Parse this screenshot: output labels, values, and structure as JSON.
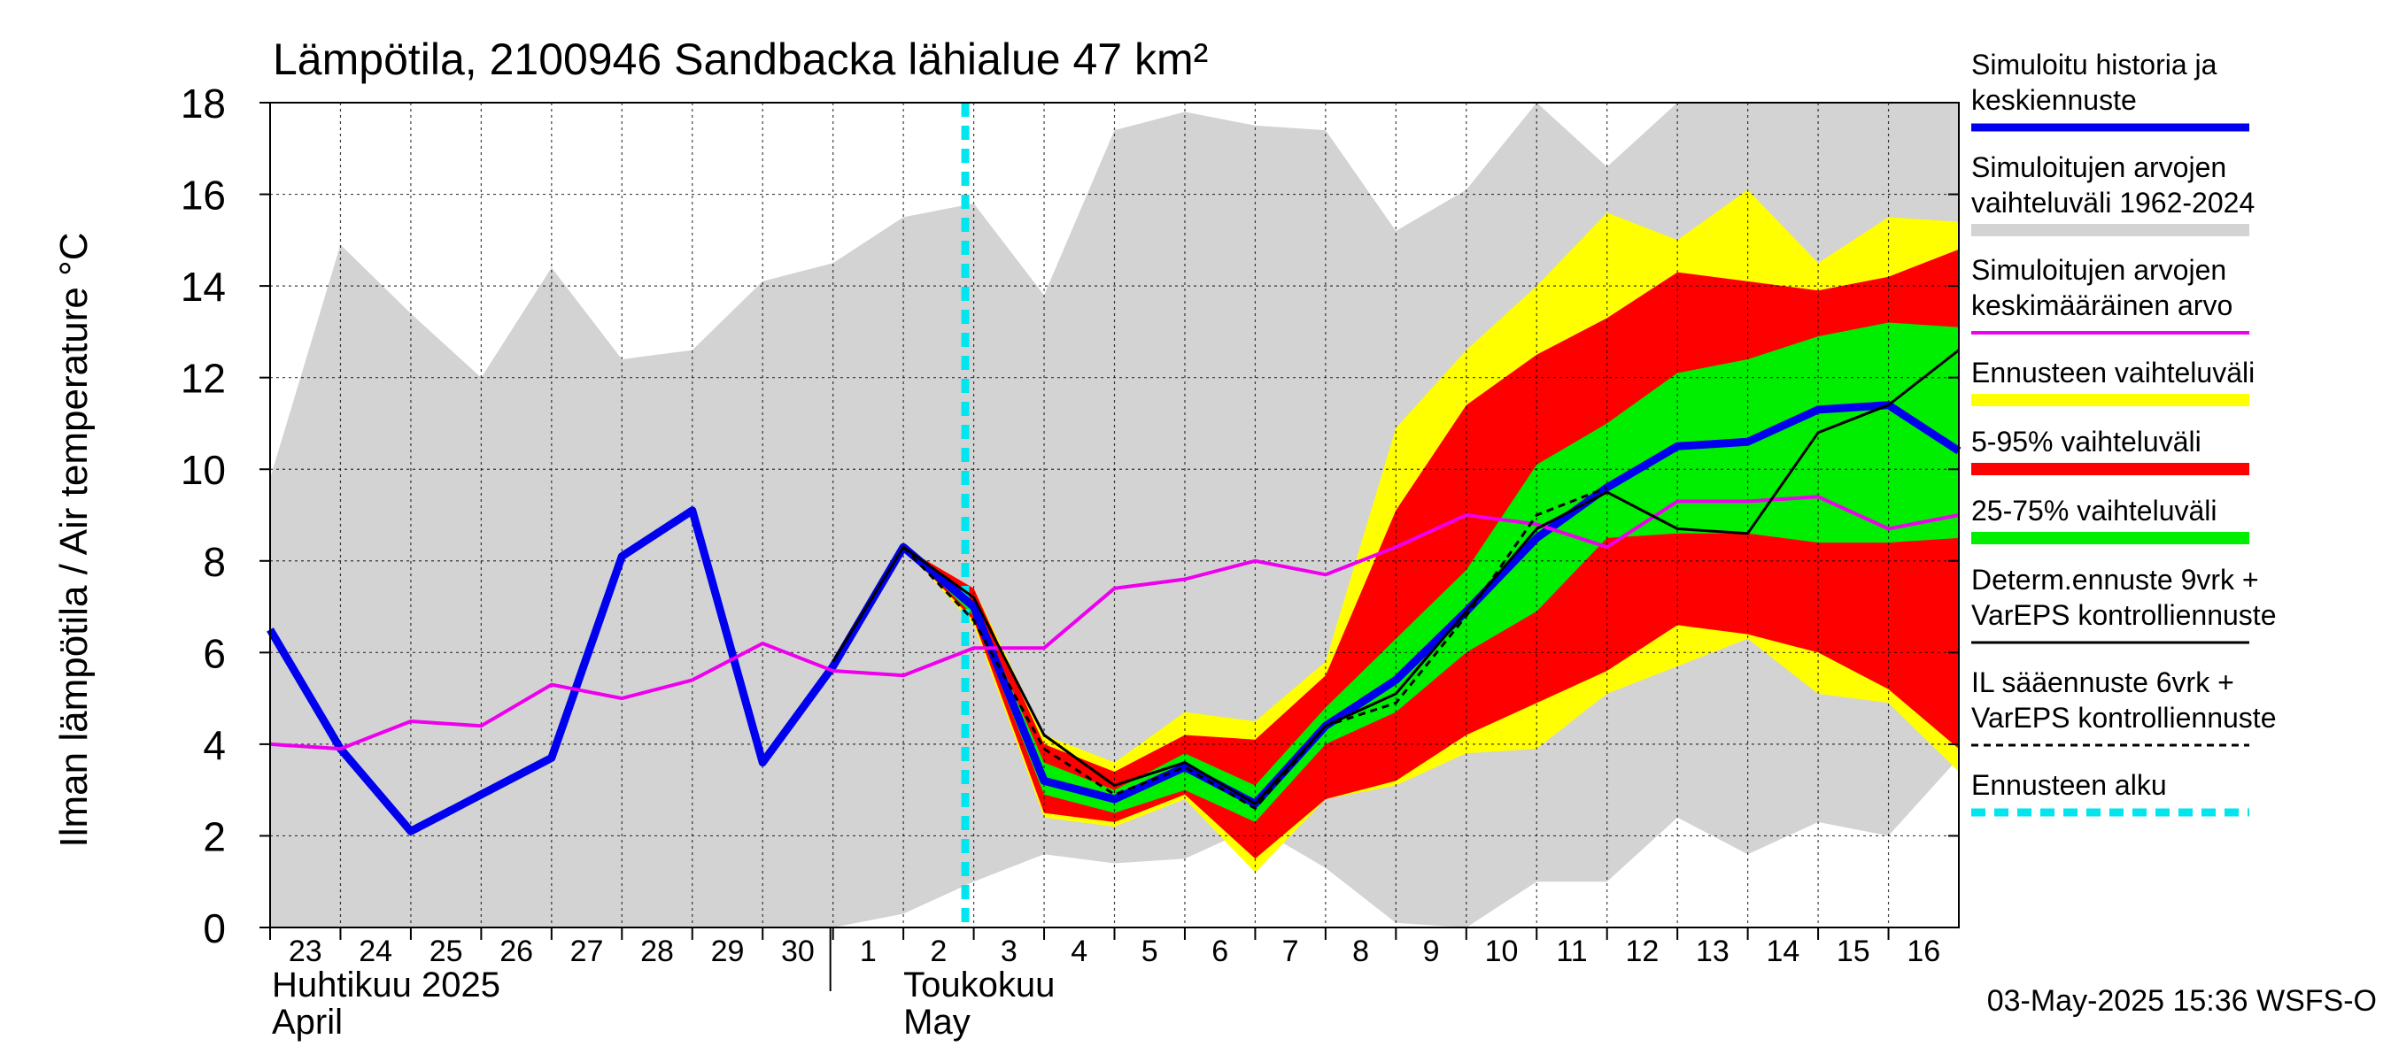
{
  "chart_data": {
    "type": "area",
    "title": "Lämpötila, 2100946 Sandbacka lähialue 47 km²",
    "ylabel": "Ilman lämpötila / Air temperature    °C",
    "ylim": [
      0,
      18
    ],
    "yticks": [
      0,
      2,
      4,
      6,
      8,
      10,
      12,
      14,
      16,
      18
    ],
    "grid": true,
    "x_start": "2025-04-23",
    "x_end": "2025-05-17",
    "month_labels": [
      {
        "date": "2025-04-23",
        "line1": "Huhtikuu  2025",
        "line2": "April"
      },
      {
        "date": "2025-05-02",
        "line1": "Toukokuu",
        "line2": "May"
      }
    ],
    "forecast_start": "2025-05-03",
    "timestamp": "03-May-2025 15:36 WSFS-O",
    "colors": {
      "history_range": "#d3d3d3",
      "forecast_range": "#ffff00",
      "p5_95": "#ff0000",
      "p25_75": "#00ee00",
      "simulated": "#0000ee",
      "mean": "#ee00ee",
      "determ": "#000000",
      "il": "#000000",
      "forecast_start": "#00e5ee"
    },
    "history_range": {
      "x": [
        "2025-04-23",
        "2025-04-24",
        "2025-04-25",
        "2025-04-26",
        "2025-04-27",
        "2025-04-28",
        "2025-04-29",
        "2025-04-30",
        "2025-05-01",
        "2025-05-02",
        "2025-05-03",
        "2025-05-04",
        "2025-05-05",
        "2025-05-06",
        "2025-05-07",
        "2025-05-08",
        "2025-05-09",
        "2025-05-10",
        "2025-05-11",
        "2025-05-12",
        "2025-05-13",
        "2025-05-14",
        "2025-05-15",
        "2025-05-16",
        "2025-05-17"
      ],
      "upper": [
        9.8,
        14.9,
        13.4,
        12.0,
        14.4,
        12.4,
        12.6,
        14.1,
        14.5,
        15.5,
        15.8,
        13.8,
        17.4,
        17.8,
        17.5,
        17.4,
        15.2,
        16.1,
        18,
        16.6,
        18,
        18,
        18,
        18,
        18
      ],
      "lower": [
        0,
        0,
        0,
        0,
        0,
        0,
        0,
        0,
        0,
        0.3,
        1.0,
        1.6,
        1.4,
        1.5,
        2.2,
        1.3,
        0.1,
        0,
        1.0,
        1.0,
        2.4,
        1.6,
        2.3,
        2.0,
        3.7
      ]
    },
    "forecast_range": {
      "x": [
        "2025-05-02",
        "2025-05-03",
        "2025-05-04",
        "2025-05-05",
        "2025-05-06",
        "2025-05-07",
        "2025-05-08",
        "2025-05-09",
        "2025-05-10",
        "2025-05-11",
        "2025-05-12",
        "2025-05-13",
        "2025-05-14",
        "2025-05-15",
        "2025-05-16",
        "2025-05-17"
      ],
      "upper": [
        8.3,
        7.4,
        4.2,
        3.6,
        4.7,
        4.5,
        5.8,
        10.9,
        12.6,
        14.0,
        15.6,
        15.0,
        16.1,
        14.5,
        15.5,
        15.4
      ],
      "lower": [
        8.3,
        6.6,
        2.4,
        2.2,
        2.8,
        1.2,
        2.8,
        3.1,
        3.8,
        3.9,
        5.1,
        5.7,
        6.3,
        5.1,
        4.9,
        3.4
      ]
    },
    "p5_95": {
      "x": [
        "2025-05-02",
        "2025-05-03",
        "2025-05-04",
        "2025-05-05",
        "2025-05-06",
        "2025-05-07",
        "2025-05-08",
        "2025-05-09",
        "2025-05-10",
        "2025-05-11",
        "2025-05-12",
        "2025-05-13",
        "2025-05-14",
        "2025-05-15",
        "2025-05-16",
        "2025-05-17"
      ],
      "upper": [
        8.3,
        7.4,
        4.0,
        3.4,
        4.2,
        4.1,
        5.5,
        9.1,
        11.4,
        12.5,
        13.3,
        14.3,
        14.1,
        13.9,
        14.2,
        14.8
      ],
      "lower": [
        8.3,
        6.7,
        2.5,
        2.3,
        2.9,
        1.5,
        2.8,
        3.2,
        4.2,
        4.9,
        5.6,
        6.6,
        6.4,
        6.0,
        5.2,
        3.9
      ]
    },
    "p25_75": {
      "x": [
        "2025-05-02",
        "2025-05-03",
        "2025-05-04",
        "2025-05-05",
        "2025-05-06",
        "2025-05-07",
        "2025-05-08",
        "2025-05-09",
        "2025-05-10",
        "2025-05-11",
        "2025-05-12",
        "2025-05-13",
        "2025-05-14",
        "2025-05-15",
        "2025-05-16",
        "2025-05-17"
      ],
      "upper": [
        8.3,
        7.1,
        3.6,
        3.0,
        3.8,
        3.1,
        4.8,
        6.3,
        7.8,
        10.1,
        11.0,
        12.1,
        12.4,
        12.9,
        13.2,
        13.1
      ],
      "lower": [
        8.3,
        6.8,
        2.9,
        2.5,
        3.0,
        2.3,
        4.0,
        4.7,
        6.0,
        6.9,
        8.5,
        8.6,
        8.6,
        8.4,
        8.4,
        8.5
      ]
    },
    "series": [
      {
        "name": "Simuloitu historia ja keskiennuste",
        "color": "#0000ee",
        "x": [
          "2025-04-23",
          "2025-04-24",
          "2025-04-25",
          "2025-04-26",
          "2025-04-27",
          "2025-04-28",
          "2025-04-29",
          "2025-04-30",
          "2025-05-01",
          "2025-05-02",
          "2025-05-03",
          "2025-05-04",
          "2025-05-05",
          "2025-05-06",
          "2025-05-07",
          "2025-05-08",
          "2025-05-09",
          "2025-05-10",
          "2025-05-11",
          "2025-05-12",
          "2025-05-13",
          "2025-05-14",
          "2025-05-15",
          "2025-05-16",
          "2025-05-17"
        ],
        "values": [
          6.5,
          3.9,
          2.1,
          2.9,
          3.7,
          8.1,
          9.1,
          3.6,
          5.7,
          8.3,
          7.0,
          3.2,
          2.8,
          3.5,
          2.7,
          4.4,
          5.4,
          6.9,
          8.5,
          9.6,
          10.5,
          10.6,
          11.3,
          11.4,
          10.4
        ]
      },
      {
        "name": "Simuloitujen arvojen keskimääräinen arvo",
        "color": "#ee00ee",
        "x": [
          "2025-04-23",
          "2025-04-24",
          "2025-04-25",
          "2025-04-26",
          "2025-04-27",
          "2025-04-28",
          "2025-04-29",
          "2025-04-30",
          "2025-05-01",
          "2025-05-02",
          "2025-05-03",
          "2025-05-04",
          "2025-05-05",
          "2025-05-06",
          "2025-05-07",
          "2025-05-08",
          "2025-05-09",
          "2025-05-10",
          "2025-05-11",
          "2025-05-12",
          "2025-05-13",
          "2025-05-14",
          "2025-05-15",
          "2025-05-16",
          "2025-05-17"
        ],
        "values": [
          4.0,
          3.9,
          4.5,
          4.4,
          5.3,
          5.0,
          5.4,
          6.2,
          5.6,
          5.5,
          6.1,
          6.1,
          7.4,
          7.6,
          8.0,
          7.7,
          8.3,
          9.0,
          8.8,
          8.3,
          9.3,
          9.3,
          9.4,
          8.7,
          9.0
        ]
      },
      {
        "name": "Determ.ennuste 9vrk + VarEPS kontrolliennuste",
        "color": "#000000",
        "x": [
          "2025-05-01",
          "2025-05-02",
          "2025-05-03",
          "2025-05-04",
          "2025-05-05",
          "2025-05-06",
          "2025-05-07",
          "2025-05-08",
          "2025-05-09",
          "2025-05-10",
          "2025-05-11",
          "2025-05-12",
          "2025-05-13",
          "2025-05-14",
          "2025-05-15",
          "2025-05-16",
          "2025-05-17"
        ],
        "values": [
          5.8,
          8.3,
          7.2,
          4.2,
          3.1,
          3.6,
          2.7,
          4.4,
          5.1,
          6.9,
          8.7,
          9.5,
          8.7,
          8.6,
          10.8,
          11.4,
          12.6
        ]
      },
      {
        "name": "IL sääennuste 6vrk  + VarEPS kontrolliennuste",
        "color": "#000000",
        "dashed": true,
        "x": [
          "2025-05-02",
          "2025-05-03",
          "2025-05-04",
          "2025-05-05",
          "2025-05-06",
          "2025-05-07",
          "2025-05-08",
          "2025-05-09",
          "2025-05-10",
          "2025-05-11",
          "2025-05-12"
        ],
        "values": [
          8.3,
          6.7,
          3.9,
          2.9,
          3.5,
          2.6,
          4.4,
          4.9,
          6.8,
          9.0,
          9.6
        ]
      }
    ],
    "legend_position": "right",
    "legend": [
      {
        "lines": [
          "Simuloitu historia ja",
          "keskiennuste"
        ],
        "key": "simulated",
        "style": "thick"
      },
      {
        "lines": [
          "Simuloitujen arvojen",
          "vaihteluväli 1962-2024"
        ],
        "key": "history_range",
        "style": "band"
      },
      {
        "lines": [
          "Simuloitujen arvojen",
          "keskimääräinen arvo"
        ],
        "key": "mean",
        "style": "line"
      },
      {
        "lines": [
          "Ennusteen vaihteluväli"
        ],
        "key": "forecast_range",
        "style": "band"
      },
      {
        "lines": [
          "5-95% vaihteluväli"
        ],
        "key": "p5_95",
        "style": "band"
      },
      {
        "lines": [
          "25-75% vaihteluväli"
        ],
        "key": "p25_75",
        "style": "band"
      },
      {
        "lines": [
          "Determ.ennuste 9vrk +",
          "VarEPS kontrolliennuste"
        ],
        "key": "determ",
        "style": "thin"
      },
      {
        "lines": [
          "IL sääennuste 6vrk  +",
          "  VarEPS kontrolliennuste"
        ],
        "key": "il",
        "style": "dashed"
      },
      {
        "lines": [
          "Ennusteen alku"
        ],
        "key": "forecast_start",
        "style": "cyan"
      }
    ]
  }
}
